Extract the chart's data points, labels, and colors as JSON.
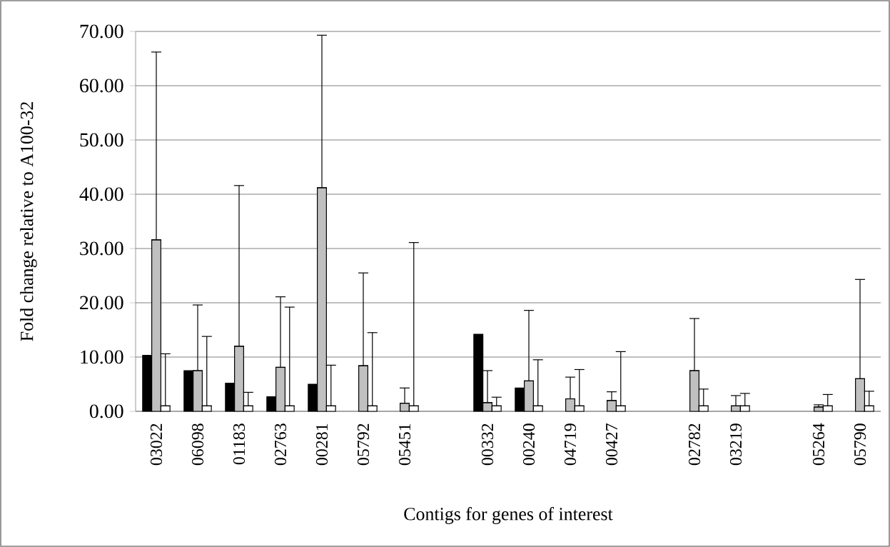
{
  "chart_data": {
    "type": "bar",
    "xlabel": "Contigs for genes of interest",
    "ylabel": "Fold change relative to A100-32",
    "categories": [
      "03022",
      "06098",
      "01183",
      "02763",
      "00281",
      "05792",
      "05451",
      null,
      "00332",
      "00240",
      "04719",
      "00427",
      null,
      "02782",
      "03219",
      null,
      "05264",
      "05790"
    ],
    "series": [
      {
        "color": "#000000",
        "values": [
          10.3,
          7.5,
          5.2,
          2.7,
          5.0,
          null,
          null,
          null,
          14.2,
          4.3,
          null,
          null,
          null,
          null,
          null,
          null,
          null,
          null
        ]
      },
      {
        "color": "#c0c0c0",
        "values": [
          31.6,
          7.5,
          12.0,
          8.1,
          41.2,
          8.4,
          1.5,
          null,
          1.6,
          5.6,
          2.3,
          2.0,
          null,
          7.5,
          1.0,
          null,
          0.8,
          6.0
        ],
        "errors": [
          [
            31.6,
            66.2
          ],
          [
            7.5,
            19.6
          ],
          [
            12.0,
            41.6
          ],
          [
            8.1,
            21.1
          ],
          [
            41.2,
            69.3
          ],
          [
            8.4,
            25.5
          ],
          [
            1.5,
            4.3
          ],
          null,
          [
            1.6,
            7.5
          ],
          [
            5.6,
            18.6
          ],
          [
            2.3,
            6.3
          ],
          [
            2.0,
            3.6
          ],
          null,
          [
            7.5,
            17.1
          ],
          [
            1.0,
            2.9
          ],
          null,
          [
            0.8,
            1.2
          ],
          [
            6.0,
            24.3
          ]
        ]
      },
      {
        "color": "#ffffff",
        "values": [
          1.0,
          1.0,
          1.0,
          1.0,
          1.0,
          1.0,
          1.0,
          null,
          1.0,
          1.0,
          1.0,
          1.0,
          null,
          1.0,
          1.0,
          null,
          1.0,
          1.0
        ],
        "errors": [
          [
            1.0,
            10.6
          ],
          [
            1.0,
            13.8
          ],
          [
            1.0,
            3.5
          ],
          [
            1.0,
            19.2
          ],
          [
            1.0,
            8.5
          ],
          [
            1.0,
            14.5
          ],
          [
            1.0,
            31.1
          ],
          null,
          [
            1.0,
            2.6
          ],
          [
            1.0,
            9.5
          ],
          [
            1.0,
            7.7
          ],
          [
            1.0,
            11.0
          ],
          null,
          [
            1.0,
            4.1
          ],
          [
            1.0,
            3.3
          ],
          null,
          [
            1.0,
            3.1
          ],
          [
            1.0,
            3.7
          ]
        ]
      }
    ],
    "ylim": [
      0,
      70
    ],
    "yticks": [
      {
        "value": 0,
        "label": "0.00"
      },
      {
        "value": 10,
        "label": "10.00"
      },
      {
        "value": 20,
        "label": "20.00"
      },
      {
        "value": 30,
        "label": "30.00"
      },
      {
        "value": 40,
        "label": "40.00"
      },
      {
        "value": 50,
        "label": "50.00"
      },
      {
        "value": 60,
        "label": "60.00"
      },
      {
        "value": 70,
        "label": "70.00"
      }
    ],
    "grid": "y"
  }
}
